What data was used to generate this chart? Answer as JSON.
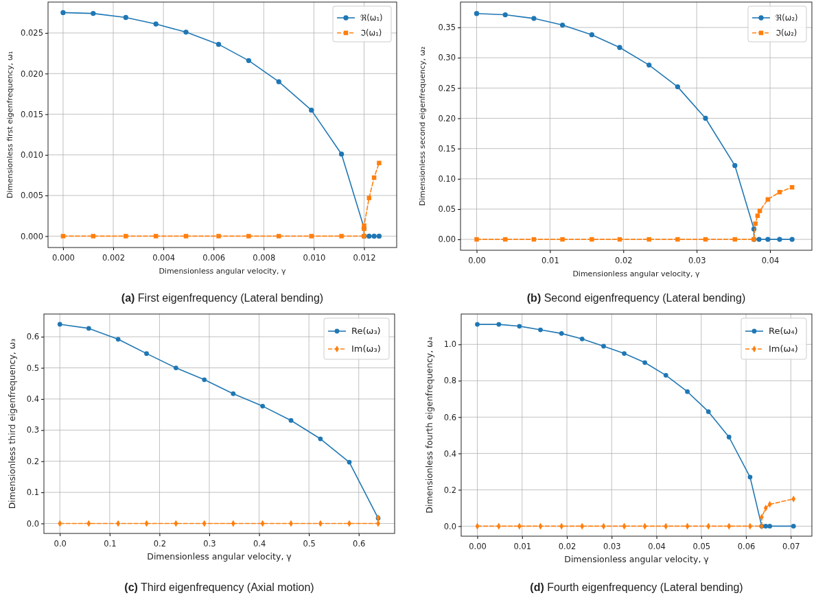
{
  "chart_data": [
    {
      "type": "line",
      "title": "(a) First eigenfrequency (Lateral bending)",
      "xlabel": "Dimensionless angular velocity, γ",
      "ylabel": "Dimensionless first eigenfrequency, ω₁",
      "grid": true,
      "legend": "top right",
      "xlim": [
        -0.0006,
        0.0133
      ],
      "ylim": [
        -0.0014,
        0.0288
      ],
      "xticks": [
        {
          "value": 0,
          "label": "0.000"
        },
        {
          "value": 0.002,
          "label": "0.002"
        },
        {
          "value": 0.004,
          "label": "0.004"
        },
        {
          "value": 0.006,
          "label": "0.006"
        },
        {
          "value": 0.008,
          "label": "0.008"
        },
        {
          "value": 0.01,
          "label": "0.010"
        },
        {
          "value": 0.012,
          "label": "0.012"
        }
      ],
      "yticks": [
        {
          "value": 0,
          "label": "0.000"
        },
        {
          "value": 0.005,
          "label": "0.005"
        },
        {
          "value": 0.01,
          "label": "0.010"
        },
        {
          "value": 0.015,
          "label": "0.015"
        },
        {
          "value": 0.02,
          "label": "0.020"
        },
        {
          "value": 0.025,
          "label": "0.025"
        }
      ],
      "series": [
        {
          "name": "ℜ(ω₁)",
          "color": "#1f77b4",
          "marker": "circle",
          "line_style": "solid",
          "x": [
            0,
            0.0012,
            0.0025,
            0.0037,
            0.0049,
            0.0062,
            0.0074,
            0.0086,
            0.0099,
            0.0111,
            0.012,
            0.012,
            0.0122,
            0.0124,
            0.0126
          ],
          "values": [
            0.0275,
            0.0274,
            0.0269,
            0.0261,
            0.0251,
            0.0236,
            0.0216,
            0.019,
            0.0155,
            0.0101,
            0.001,
            0,
            0,
            0,
            0
          ]
        },
        {
          "name": "ℑ(ω₁)",
          "color": "#ff7f0e",
          "marker": "square",
          "line_style": "dashed",
          "x": [
            0,
            0.0012,
            0.0025,
            0.0037,
            0.0049,
            0.0062,
            0.0074,
            0.0086,
            0.0099,
            0.0111,
            0.012,
            0.012,
            0.012,
            0.0122,
            0.0124,
            0.0126
          ],
          "values": [
            0,
            0,
            0,
            0,
            0,
            0,
            0,
            0,
            0,
            0,
            0,
            0.0009,
            0.0013,
            0.0047,
            0.0072,
            0.009
          ]
        }
      ]
    },
    {
      "type": "line",
      "title": "(b) Second eigenfrequency (Lateral bending)",
      "xlabel": "Dimensionless angular velocity, γ",
      "ylabel": "Dimensionless second eigenfrequency, ω₂",
      "grid": true,
      "legend": "top right",
      "xlim": [
        -0.0022,
        0.0457
      ],
      "ylim": [
        -0.018,
        0.392
      ],
      "xticks": [
        {
          "value": 0,
          "label": "0.00"
        },
        {
          "value": 0.01,
          "label": "0.01"
        },
        {
          "value": 0.02,
          "label": "0.02"
        },
        {
          "value": 0.03,
          "label": "0.03"
        },
        {
          "value": 0.04,
          "label": "0.04"
        }
      ],
      "yticks": [
        {
          "value": 0,
          "label": "0.00"
        },
        {
          "value": 0.05,
          "label": "0.05"
        },
        {
          "value": 0.1,
          "label": "0.10"
        },
        {
          "value": 0.15,
          "label": "0.15"
        },
        {
          "value": 0.2,
          "label": "0.20"
        },
        {
          "value": 0.25,
          "label": "0.25"
        },
        {
          "value": 0.3,
          "label": "0.30"
        },
        {
          "value": 0.35,
          "label": "0.35"
        }
      ],
      "series": [
        {
          "name": "ℜ(ω₂)",
          "color": "#1f77b4",
          "marker": "circle",
          "line_style": "solid",
          "x": [
            0,
            0.0039,
            0.0078,
            0.0117,
            0.0157,
            0.0195,
            0.0235,
            0.0274,
            0.0312,
            0.0352,
            0.0378,
            0.0378,
            0.0385,
            0.0397,
            0.0413,
            0.043
          ],
          "values": [
            0.373,
            0.371,
            0.365,
            0.354,
            0.338,
            0.317,
            0.288,
            0.252,
            0.2,
            0.122,
            0.017,
            0,
            0,
            0,
            0,
            0
          ]
        },
        {
          "name": "ℑ(ω₂)",
          "color": "#ff7f0e",
          "marker": "square",
          "line_style": "dashed",
          "x": [
            0,
            0.0039,
            0.0078,
            0.0117,
            0.0157,
            0.0195,
            0.0235,
            0.0274,
            0.0312,
            0.0352,
            0.0378,
            0.038,
            0.0383,
            0.0386,
            0.0397,
            0.0413,
            0.043
          ],
          "values": [
            0,
            0,
            0,
            0,
            0,
            0,
            0,
            0,
            0,
            0,
            0,
            0.026,
            0.039,
            0.047,
            0.066,
            0.078,
            0.086
          ]
        }
      ]
    },
    {
      "type": "line",
      "title": "(c) Third eigenfrequency (Axial motion)",
      "xlabel": "Dimensionless angular velocity, γ",
      "ylabel": "Dimensionless third eigenfrequency, ω₃",
      "grid": true,
      "legend": "top right",
      "xlim": [
        -0.032,
        0.672
      ],
      "ylim": [
        -0.032,
        0.673
      ],
      "xticks": [
        {
          "value": 0,
          "label": "0.0"
        },
        {
          "value": 0.1,
          "label": "0.1"
        },
        {
          "value": 0.2,
          "label": "0.2"
        },
        {
          "value": 0.3,
          "label": "0.3"
        },
        {
          "value": 0.4,
          "label": "0.4"
        },
        {
          "value": 0.5,
          "label": "0.5"
        },
        {
          "value": 0.6,
          "label": "0.6"
        }
      ],
      "yticks": [
        {
          "value": 0,
          "label": "0.0"
        },
        {
          "value": 0.1,
          "label": "0.1"
        },
        {
          "value": 0.2,
          "label": "0.2"
        },
        {
          "value": 0.3,
          "label": "0.3"
        },
        {
          "value": 0.4,
          "label": "0.4"
        },
        {
          "value": 0.5,
          "label": "0.5"
        },
        {
          "value": 0.6,
          "label": "0.6"
        }
      ],
      "series": [
        {
          "name": "Re(ω₃)",
          "color": "#1f77b4",
          "marker": "circle",
          "line_style": "solid",
          "x": [
            0,
            0.058,
            0.117,
            0.174,
            0.233,
            0.29,
            0.348,
            0.407,
            0.464,
            0.523,
            0.581,
            0.639
          ],
          "values": [
            0.64,
            0.627,
            0.592,
            0.546,
            0.5,
            0.462,
            0.417,
            0.377,
            0.331,
            0.272,
            0.197,
            0.017
          ]
        },
        {
          "name": "Im(ω₃)",
          "color": "#ff7f0e",
          "marker": "diamond",
          "line_style": "dashed",
          "x": [
            0,
            0.058,
            0.117,
            0.174,
            0.233,
            0.29,
            0.348,
            0.407,
            0.464,
            0.523,
            0.581,
            0.639,
            0.639
          ],
          "values": [
            0,
            0,
            0,
            0,
            0,
            0,
            0,
            0,
            0,
            0,
            0,
            0,
            0.018
          ]
        }
      ]
    },
    {
      "type": "line",
      "title": "(d) Fourth eigenfrequency (Lateral bending)",
      "xlabel": "Dimensionless angular velocity, γ",
      "ylabel": "Dimensionless fourth eigenfrequency, ω₄",
      "grid": true,
      "legend": "top right",
      "xlim": [
        -0.0036,
        0.0747
      ],
      "ylim": [
        -0.055,
        1.167
      ],
      "xticks": [
        {
          "value": 0,
          "label": "0.00"
        },
        {
          "value": 0.01,
          "label": "0.01"
        },
        {
          "value": 0.02,
          "label": "0.02"
        },
        {
          "value": 0.03,
          "label": "0.03"
        },
        {
          "value": 0.04,
          "label": "0.04"
        },
        {
          "value": 0.05,
          "label": "0.05"
        },
        {
          "value": 0.06,
          "label": "0.06"
        },
        {
          "value": 0.07,
          "label": "0.07"
        }
      ],
      "yticks": [
        {
          "value": 0,
          "label": "0.0"
        },
        {
          "value": 0.2,
          "label": "0.2"
        },
        {
          "value": 0.4,
          "label": "0.4"
        },
        {
          "value": 0.6,
          "label": "0.6"
        },
        {
          "value": 0.8,
          "label": "0.8"
        },
        {
          "value": 1,
          "label": "1.0"
        }
      ],
      "series": [
        {
          "name": "Re(ω₄)",
          "color": "#1f77b4",
          "marker": "circle",
          "line_style": "solid",
          "x": [
            0,
            0.0048,
            0.0094,
            0.0141,
            0.0188,
            0.0234,
            0.0282,
            0.0328,
            0.0374,
            0.0421,
            0.0469,
            0.0516,
            0.0562,
            0.0609,
            0.0635,
            0.0644,
            0.0653,
            0.0706
          ],
          "values": [
            1.11,
            1.11,
            1.1,
            1.08,
            1.06,
            1.03,
            0.99,
            0.95,
            0.9,
            0.83,
            0.74,
            0.63,
            0.49,
            0.27,
            0,
            0,
            0,
            0
          ]
        },
        {
          "name": "Im(ω₄)",
          "color": "#ff7f0e",
          "marker": "diamond",
          "line_style": "dashed",
          "x": [
            0,
            0.0048,
            0.0094,
            0.0141,
            0.0188,
            0.0234,
            0.0282,
            0.0328,
            0.0374,
            0.0421,
            0.0469,
            0.0516,
            0.0562,
            0.0609,
            0.0635,
            0.0635,
            0.0644,
            0.0653,
            0.0706
          ],
          "values": [
            0,
            0,
            0,
            0,
            0,
            0,
            0,
            0,
            0,
            0,
            0,
            0,
            0,
            0,
            0,
            0.05,
            0.1,
            0.12,
            0.15
          ]
        }
      ]
    }
  ]
}
